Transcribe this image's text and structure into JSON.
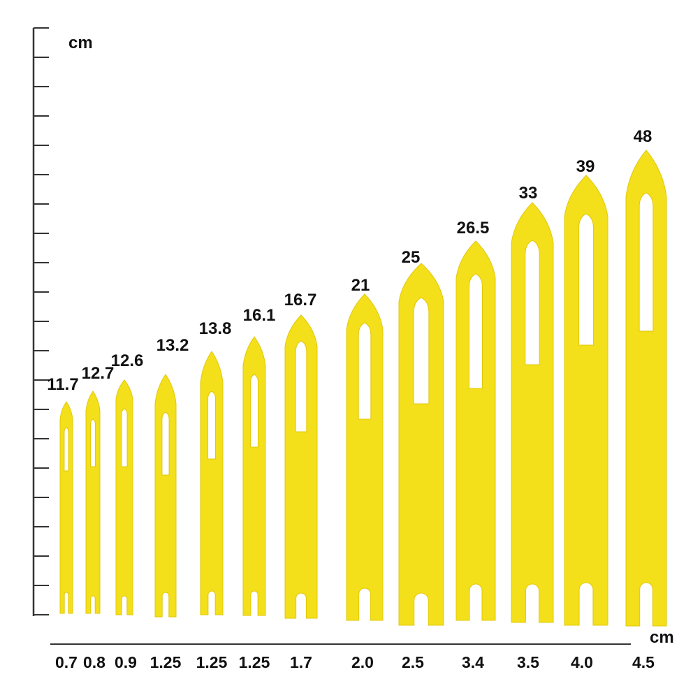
{
  "units": {
    "height_unit": "cm",
    "width_unit": "cm"
  },
  "colors": {
    "needle": "#f3df1a",
    "needle_edge": "#e2c80c",
    "axis": "#333333",
    "text": "#111111"
  },
  "needles": [
    {
      "height": "11.7",
      "width": "0.7"
    },
    {
      "height": "12.7",
      "width": "0.8"
    },
    {
      "height": "12.6",
      "width": "0.9"
    },
    {
      "height": "13.2",
      "width": "1.25"
    },
    {
      "height": "13.8",
      "width": "1.25"
    },
    {
      "height": "16.1",
      "width": "1.25"
    },
    {
      "height": "16.7",
      "width": "1.7"
    },
    {
      "height": "21",
      "width": "2.0"
    },
    {
      "height": "25",
      "width": "2.5"
    },
    {
      "height": "26.5",
      "width": "3.4"
    },
    {
      "height": "33",
      "width": "3.5"
    },
    {
      "height": "39",
      "width": "4.0"
    },
    {
      "height": "48",
      "width": "4.5"
    }
  ]
}
